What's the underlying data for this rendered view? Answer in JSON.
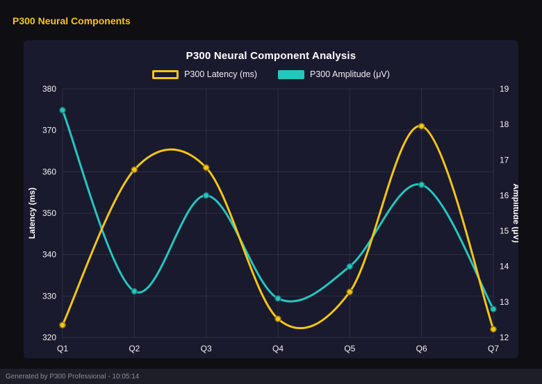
{
  "page": {
    "heading": "P300 Neural Components",
    "footer": "Generated by P300 Professional - 10:05:14"
  },
  "chart_data": {
    "type": "line",
    "title": "P300 Neural Component Analysis",
    "categories": [
      "Q1",
      "Q2",
      "Q3",
      "Q4",
      "Q5",
      "Q6",
      "Q7"
    ],
    "series": [
      {
        "name": "P300 Latency (ms)",
        "axis": "left",
        "color": "#f5c518",
        "swatch": "outline",
        "values": [
          323,
          360.5,
          361,
          324.5,
          331,
          371,
          322
        ]
      },
      {
        "name": "P300 Amplitude (μV)",
        "axis": "right",
        "color": "#26c6bf",
        "swatch": "solid",
        "values": [
          18.4,
          13.3,
          16.0,
          13.1,
          14.0,
          16.3,
          12.8
        ]
      }
    ],
    "left_axis": {
      "label": "Latency (ms)",
      "min": 320,
      "max": 380,
      "step": 10
    },
    "right_axis": {
      "label": "Amplitude (μV)",
      "min": 12,
      "max": 19,
      "step": 1
    },
    "grid": true,
    "legend_position": "top",
    "curve": "smooth",
    "colors": {
      "background": "#0e0e13",
      "panel": "#1a1a2e",
      "gridline": "rgba(255,255,255,0.09)",
      "tick_text": "#f2f2f7",
      "axis_title_text": "#ffffff"
    }
  }
}
